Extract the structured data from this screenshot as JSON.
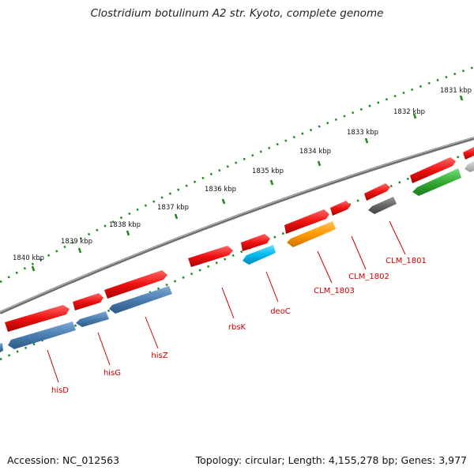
{
  "title": "Clostridium botulinum A2 str. Kyoto, complete genome",
  "footer": {
    "accession": "Accession: NC_012563",
    "summary": "Topology: circular; Length: 4,155,278 bp; Genes: 3,977"
  },
  "scale": {
    "ticks": [
      {
        "kbp": 1831,
        "label": "1831 kbp"
      },
      {
        "kbp": 1832,
        "label": "1832 kbp"
      },
      {
        "kbp": 1833,
        "label": "1833 kbp"
      },
      {
        "kbp": 1834,
        "label": "1834 kbp"
      },
      {
        "kbp": 1835,
        "label": "1835 kbp"
      },
      {
        "kbp": 1836,
        "label": "1836 kbp"
      },
      {
        "kbp": 1837,
        "label": "1837 kbp"
      },
      {
        "kbp": 1838,
        "label": "1838 kbp"
      },
      {
        "kbp": 1839,
        "label": "1839 kbp"
      },
      {
        "kbp": 1840,
        "label": "1840 kbp"
      }
    ]
  },
  "genes": [
    {
      "label": "CLM_1801",
      "color": "#666666"
    },
    {
      "label": "CLM_1802",
      "color": "#ee1111"
    },
    {
      "label": "CLM_1803",
      "color": "#ff9900"
    },
    {
      "label": "deoC",
      "color": "#00bbee"
    },
    {
      "label": "rbsK",
      "color": "#ee1111"
    },
    {
      "label": "hisZ",
      "color": "#4477aa"
    },
    {
      "label": "hisG",
      "color": "#4477aa"
    },
    {
      "label": "hisD",
      "color": "#4477aa"
    }
  ],
  "colors": {
    "backbone": "#8a8a8a",
    "tick": "#228822",
    "label": "#cc0000",
    "cds_red": "#ee1111",
    "cds_blue": "#4477aa",
    "cds_green": "#33aa33",
    "cds_grey": "#aaaaaa"
  }
}
